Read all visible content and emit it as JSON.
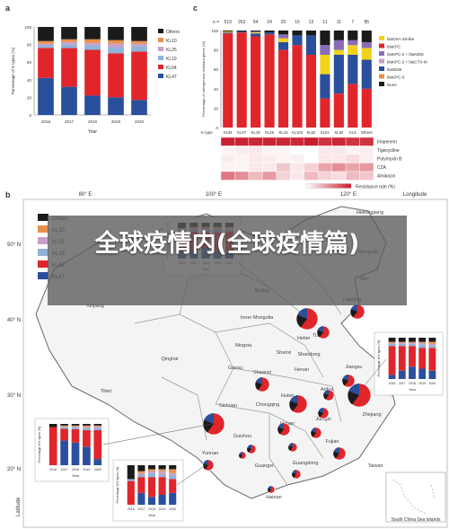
{
  "overlay_title": "全球疫情内(全球疫情篇)",
  "panel_a": {
    "letter": "a",
    "xlabel": "Year",
    "ylabel": "Percentage of K types (%)",
    "yticks": [
      "0",
      "20",
      "40",
      "60",
      "80",
      "100"
    ],
    "legend": [
      "Others",
      "KL10",
      "KL25",
      "KL19",
      "KL64",
      "KL47"
    ]
  },
  "panel_c": {
    "letter": "c",
    "n_label": "n =",
    "counts": [
      "513",
      "263",
      "54",
      "24",
      "20",
      "16",
      "12",
      "11",
      "11",
      "7",
      "85"
    ],
    "categories": [
      "KL64",
      "KL47",
      "KL19",
      "KL25",
      "KL10",
      "KL102",
      "KL62",
      "KL51",
      "KL60",
      "KL5",
      "Others"
    ],
    "x_axis_label": "K type",
    "ylabel": "Percentage of carbapenem-resistant genes (%)",
    "yticks": [
      "0",
      "20",
      "40",
      "60",
      "80",
      "100"
    ],
    "legend": [
      "blaOXA-48-like",
      "blaKPC",
      "blaKPC-2 + blaNDM",
      "blaKPC-2 + blaCTX-M",
      "blaNDM",
      "blaKPC-3",
      "None"
    ],
    "drugs": [
      "Imipenem",
      "Tigecycline",
      "Polymyxin B",
      "CZA",
      "Amikacin"
    ],
    "resistance_label": "Resistance rate (%)",
    "resistance_ticks": [
      "0",
      "50",
      "100"
    ]
  },
  "panel_b": {
    "letter": "b",
    "longitude_label": "Longitude",
    "latitude_label": "Latitude",
    "lon_ticks": [
      "80° E",
      "100° E",
      "120° E"
    ],
    "lat_ticks": [
      "50° N",
      "40° N",
      "30° N",
      "20° N"
    ],
    "legend": [
      "Others",
      "KL10",
      "KL25",
      "KL19",
      "KL64",
      "KL47"
    ],
    "inset_caption": "South China Sea Islands",
    "regions": [
      "Heilongjiang",
      "Jilin",
      "Liaoning",
      "Inner Mongolia",
      "Beijing",
      "Tianjin",
      "Hebei",
      "Shanxi",
      "Shandong",
      "Ningxia",
      "Gansu",
      "Qinghai",
      "Xinjiang",
      "Tibet",
      "Shaanxi",
      "Henan",
      "Jiangsu",
      "Anhui",
      "Shanghai",
      "Hubei",
      "Sichuan",
      "Chongqing",
      "Zhejiang",
      "Jiangxi",
      "Hunan",
      "Guizhou",
      "Fujian",
      "Yunnan",
      "Guangxi",
      "Guangdong",
      "Taiwan",
      "Hainan",
      "Mongolia"
    ],
    "inset_xlabel": "Year",
    "inset_ylabel": "Percentage of K types (%)",
    "inset_years": [
      "2016",
      "2017",
      "2018",
      "2019",
      "2020"
    ]
  },
  "chart_data": [
    {
      "type": "bar",
      "title": "",
      "xlabel": "Year",
      "ylabel": "Percentage of K types (%)",
      "ylim": [
        0,
        100
      ],
      "categories": [
        "2016",
        "2017",
        "2018",
        "2019",
        "2020"
      ],
      "stacked": true,
      "series": [
        {
          "name": "KL47",
          "values": [
            42,
            32,
            22,
            20,
            17
          ],
          "color": "#2a4f9c"
        },
        {
          "name": "KL64",
          "values": [
            34,
            44,
            52,
            50,
            55
          ],
          "color": "#e0262b"
        },
        {
          "name": "KL19",
          "values": [
            3,
            4,
            5,
            7,
            6
          ],
          "color": "#8fb3d9"
        },
        {
          "name": "KL25",
          "values": [
            2,
            3,
            3,
            4,
            3
          ],
          "color": "#c9a0c8"
        },
        {
          "name": "KL10",
          "values": [
            3,
            3,
            4,
            4,
            3
          ],
          "color": "#e8914a"
        },
        {
          "name": "Others",
          "values": [
            16,
            14,
            14,
            15,
            16
          ],
          "color": "#1b1b1b"
        }
      ]
    },
    {
      "type": "bar",
      "title": "",
      "xlabel": "K type",
      "ylabel": "Percentage of carbapenem-resistant genes (%)",
      "ylim": [
        0,
        100
      ],
      "stacked": true,
      "categories": [
        "KL64",
        "KL47",
        "KL19",
        "KL25",
        "KL10",
        "KL102",
        "KL62",
        "KL51",
        "KL60",
        "KL5",
        "Others"
      ],
      "series": [
        {
          "name": "blaKPC",
          "values": [
            97,
            98,
            94,
            96,
            80,
            85,
            75,
            30,
            35,
            45,
            40
          ],
          "color": "#e0262b"
        },
        {
          "name": "blaNDM",
          "values": [
            1,
            1,
            3,
            2,
            8,
            10,
            20,
            25,
            40,
            30,
            30
          ],
          "color": "#2a4f9c"
        },
        {
          "name": "blaOXA-48-like",
          "values": [
            1,
            0,
            1,
            0,
            4,
            0,
            0,
            20,
            5,
            10,
            12
          ],
          "color": "#f2d21b"
        },
        {
          "name": "blaKPC-2 + blaNDM",
          "values": [
            0,
            0,
            1,
            0,
            4,
            0,
            0,
            10,
            10,
            5,
            6
          ],
          "color": "#8a6bb8"
        },
        {
          "name": "None",
          "values": [
            1,
            1,
            1,
            2,
            4,
            5,
            5,
            15,
            10,
            10,
            12
          ],
          "color": "#1b1b1b"
        }
      ]
    },
    {
      "type": "heatmap",
      "title": "",
      "xlabel": "K type",
      "ylabel": "",
      "rows": [
        "Imipenem",
        "Tigecycline",
        "Polymyxin B",
        "CZA",
        "Amikacin"
      ],
      "columns": [
        "KL64",
        "KL47",
        "KL19",
        "KL25",
        "KL10",
        "KL102",
        "KL62",
        "KL51",
        "KL60",
        "KL5",
        "Others"
      ],
      "values": [
        [
          98,
          98,
          95,
          96,
          95,
          95,
          100,
          90,
          95,
          90,
          90
        ],
        [
          5,
          8,
          10,
          5,
          5,
          0,
          0,
          10,
          10,
          5,
          8
        ],
        [
          8,
          5,
          10,
          8,
          5,
          6,
          0,
          10,
          10,
          15,
          8
        ],
        [
          5,
          5,
          10,
          10,
          25,
          10,
          20,
          40,
          50,
          40,
          45
        ],
        [
          60,
          50,
          30,
          45,
          20,
          10,
          30,
          20,
          15,
          30,
          25
        ]
      ],
      "color_scale": {
        "label": "Resistance rate (%)",
        "min": 0,
        "max": 100
      }
    }
  ]
}
